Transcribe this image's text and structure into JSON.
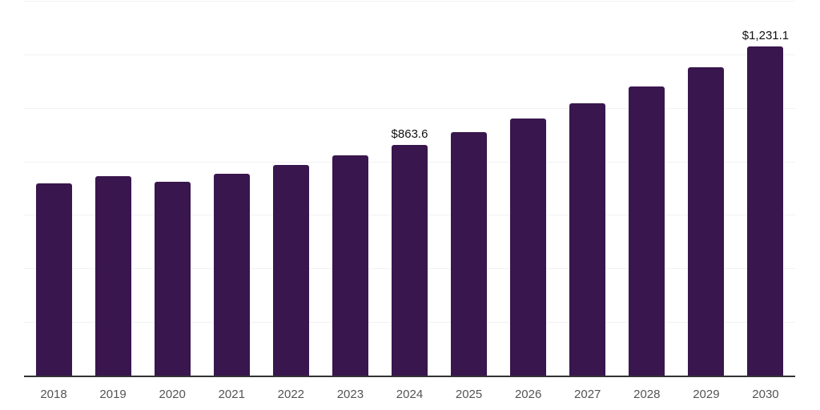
{
  "chart_data": {
    "type": "bar",
    "title": "",
    "xlabel": "",
    "ylabel": "",
    "categories": [
      "2018",
      "2019",
      "2020",
      "2021",
      "2022",
      "2023",
      "2024",
      "2025",
      "2026",
      "2027",
      "2028",
      "2029",
      "2030"
    ],
    "values": [
      720,
      749,
      726,
      756,
      789,
      825,
      863.6,
      912,
      962,
      1020,
      1082,
      1156,
      1231.1
    ],
    "data_labels": {
      "2024": "$863.6",
      "2030": "$1,231.1"
    },
    "ylim": [
      0,
      1400
    ],
    "ytick_step": 200,
    "y_tick_labels_shown": false,
    "grid": "horizontal",
    "legend": "none"
  },
  "style": {
    "background_color": "#ffffff",
    "bar_color": "#39164d",
    "gridline_color": "#f2f2f2",
    "axis_color": "#333333",
    "tick_label_color": "#545454",
    "value_label_color": "#111111"
  }
}
